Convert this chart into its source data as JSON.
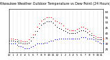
{
  "title": "Milwaukee Weather Outdoor Temperature vs Dew Point (24 Hours)",
  "title_fontsize": 3.5,
  "background_color": "#ffffff",
  "grid_color": "#888888",
  "xlim": [
    0,
    47
  ],
  "ylim": [
    22,
    63
  ],
  "yticks": [
    25,
    30,
    35,
    40,
    45,
    50,
    55,
    60
  ],
  "ytick_fontsize": 3.0,
  "xtick_fontsize": 2.8,
  "xtick_labels": [
    "12",
    "1",
    "2",
    "3",
    "4",
    "5",
    "6",
    "7",
    "8",
    "9",
    "10",
    "11",
    "12",
    "1",
    "2",
    "3",
    "4",
    "5",
    "6",
    "7",
    "8",
    "9",
    "10",
    "11"
  ],
  "xtick_positions": [
    0,
    2,
    4,
    6,
    8,
    10,
    12,
    14,
    16,
    18,
    20,
    22,
    24,
    26,
    28,
    30,
    32,
    34,
    36,
    38,
    40,
    42,
    44,
    46
  ],
  "temp_x": [
    0,
    1,
    2,
    3,
    4,
    5,
    6,
    7,
    8,
    9,
    10,
    11,
    12,
    13,
    14,
    15,
    16,
    17,
    18,
    19,
    20,
    21,
    22,
    23,
    24,
    25,
    26,
    27,
    28,
    29,
    30,
    31,
    32,
    33,
    34,
    35,
    36,
    37,
    38,
    39,
    40,
    41,
    42,
    43,
    44,
    45,
    46,
    47
  ],
  "temp_y": [
    35,
    35,
    35,
    34,
    34,
    33,
    33,
    32,
    32,
    32,
    34,
    36,
    39,
    42,
    46,
    49,
    52,
    53,
    54,
    55,
    55,
    55,
    54,
    52,
    51,
    50,
    49,
    47,
    45,
    44,
    43,
    43,
    43,
    43,
    44,
    45,
    46,
    46,
    45,
    44,
    42,
    40,
    38,
    37,
    36,
    36,
    36,
    35
  ],
  "dew_x": [
    0,
    1,
    2,
    3,
    4,
    5,
    6,
    7,
    8,
    9,
    10,
    11,
    12,
    13,
    14,
    15,
    16,
    17,
    18,
    19,
    20,
    21,
    22,
    23,
    24,
    25,
    26,
    27,
    28,
    29,
    30,
    31,
    32,
    33,
    34,
    35,
    36,
    37,
    38,
    39,
    40,
    41,
    42,
    43,
    44,
    45,
    46,
    47
  ],
  "dew_y": [
    30,
    30,
    30,
    30,
    29,
    28,
    28,
    27,
    26,
    26,
    26,
    27,
    28,
    29,
    30,
    30,
    30,
    30,
    31,
    31,
    32,
    33,
    33,
    34,
    34,
    35,
    35,
    35,
    35,
    35,
    35,
    35,
    35,
    35,
    35,
    35,
    36,
    36,
    36,
    35,
    35,
    35,
    34,
    33,
    32,
    31,
    30,
    30
  ],
  "extra_x": [
    0,
    1,
    2,
    3,
    4,
    5,
    6,
    7,
    8,
    9,
    10,
    11,
    12,
    13,
    14,
    15,
    16,
    17,
    18,
    19,
    20,
    21,
    22,
    23,
    24,
    25,
    26,
    27,
    28,
    29,
    30,
    31,
    32,
    33,
    34,
    35,
    36,
    37,
    38,
    39,
    40,
    41,
    42,
    43,
    44,
    45,
    46,
    47
  ],
  "extra_y": [
    33,
    33,
    33,
    32,
    32,
    31,
    31,
    30,
    30,
    30,
    31,
    33,
    36,
    39,
    42,
    45,
    48,
    49,
    50,
    51,
    51,
    51,
    50,
    48,
    46,
    45,
    44,
    43,
    42,
    41,
    40,
    40,
    40,
    40,
    41,
    42,
    43,
    43,
    42,
    41,
    39,
    38,
    36,
    35,
    34,
    34,
    34,
    33
  ],
  "temp_color": "#ff0000",
  "dew_color": "#0000ff",
  "extra_color": "#000000",
  "dot_size": 0.8
}
